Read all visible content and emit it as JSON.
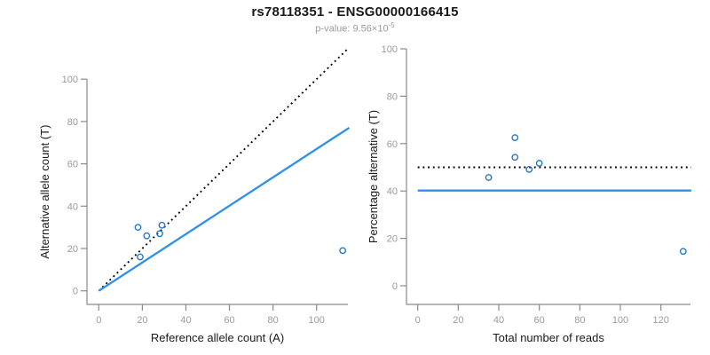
{
  "header": {
    "title": "rs78118351 - ENSG00000166415",
    "subtitle_prefix": "p-value: 9.56×10",
    "subtitle_exponent": "-5"
  },
  "colors": {
    "blue_line": "#2e90e8",
    "blue_point": "#2878c8",
    "black_line": "#000000",
    "axis_gray": "#8a8a8a",
    "tick_label_gray": "#9b9b9b",
    "axis_title_black": "#1a1a1a"
  },
  "chart_data": [
    {
      "type": "scatter",
      "panel": "left",
      "xlabel": "Reference allele count (A)",
      "ylabel": "Alternative allele count (T)",
      "xlim": [
        0,
        113
      ],
      "ylim": [
        0,
        114
      ],
      "xticks": [
        0,
        20,
        40,
        60,
        80,
        100
      ],
      "yticks": [
        0,
        20,
        40,
        60,
        80,
        100
      ],
      "grid": false,
      "points": [
        {
          "x": 18,
          "y": 30
        },
        {
          "x": 22,
          "y": 26
        },
        {
          "x": 28,
          "y": 27
        },
        {
          "x": 29,
          "y": 31
        },
        {
          "x": 19,
          "y": 16
        },
        {
          "x": 112,
          "y": 19
        }
      ],
      "lines": [
        {
          "name": "identity-line",
          "style": "dotted",
          "color_key": "black_line",
          "slope": 1,
          "intercept": 0,
          "x_start": 0,
          "x_end": 114
        },
        {
          "name": "regression-line",
          "style": "solid",
          "color_key": "blue_line",
          "slope": 0.67,
          "intercept": 0,
          "x_start": 0,
          "x_end": 115
        }
      ]
    },
    {
      "type": "scatter",
      "panel": "right",
      "xlabel": "Total number of reads",
      "ylabel": "Percentage alternative (T)",
      "xlim": [
        0,
        134
      ],
      "ylim": [
        0,
        100
      ],
      "xticks": [
        0,
        20,
        40,
        60,
        80,
        100,
        120
      ],
      "yticks": [
        0,
        20,
        40,
        60,
        80,
        100
      ],
      "grid": false,
      "points": [
        {
          "x": 48,
          "y": 62.5
        },
        {
          "x": 48,
          "y": 54.2
        },
        {
          "x": 55,
          "y": 49.1
        },
        {
          "x": 60,
          "y": 51.7
        },
        {
          "x": 35,
          "y": 45.7
        },
        {
          "x": 131,
          "y": 14.5
        }
      ],
      "lines": [
        {
          "name": "null-fifty-percent-line",
          "style": "dotted",
          "color_key": "black_line",
          "slope": 0,
          "intercept": 50,
          "x_start": 0,
          "x_end": 135
        },
        {
          "name": "estimated-percentage-line",
          "style": "solid",
          "color_key": "blue_line",
          "slope": 0,
          "intercept": 40.2,
          "x_start": 0,
          "x_end": 135
        }
      ]
    }
  ]
}
